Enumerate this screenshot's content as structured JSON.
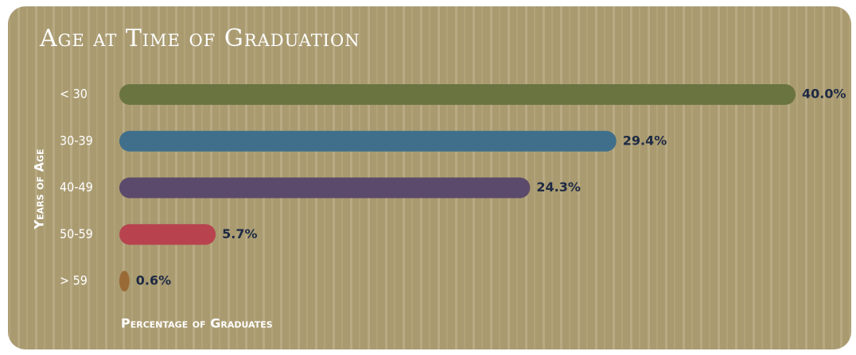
{
  "chart_data": {
    "type": "barh",
    "title": "Age at Time of Graduation",
    "y_label": "Years of Age",
    "x_label": "Percentage of Graduates",
    "categories": [
      "< 30",
      "30-39",
      "40-49",
      "50-59",
      "> 59"
    ],
    "values": [
      40.0,
      29.4,
      24.3,
      5.7,
      0.6
    ],
    "value_labels": [
      "40.0%",
      "29.4%",
      "24.3%",
      "5.7%",
      "0.6%"
    ],
    "colors": [
      "#6a7441",
      "#3f6f8b",
      "#5c4a6c",
      "#b8434f",
      "#9a6a36"
    ],
    "xlim": [
      0,
      40
    ]
  }
}
